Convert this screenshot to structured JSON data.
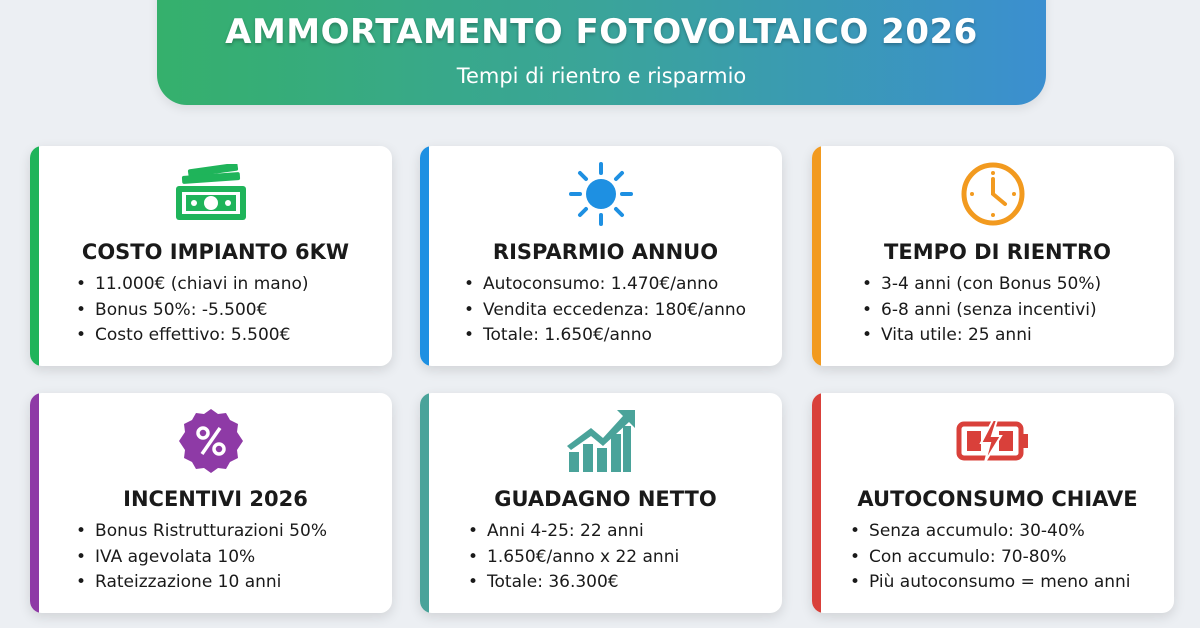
{
  "header": {
    "title": "AMMORTAMENTO FOTOVOLTAICO 2026",
    "subtitle": "Tempi di rientro e risparmio"
  },
  "cards": [
    {
      "icon": "money-icon",
      "color": "#1fb45a",
      "title": "COSTO IMPIANTO 6KW",
      "items": [
        "11.000€ (chiavi in mano)",
        "Bonus 50%: -5.500€",
        "Costo effettivo: 5.500€"
      ]
    },
    {
      "icon": "sun-icon",
      "color": "#1e90e2",
      "title": "RISPARMIO ANNUO",
      "items": [
        "Autoconsumo: 1.470€/anno",
        "Vendita eccedenza: 180€/anno",
        "Totale: 1.650€/anno"
      ]
    },
    {
      "icon": "clock-icon",
      "color": "#f29a1f",
      "title": "TEMPO DI RIENTRO",
      "items": [
        "3-4 anni (con Bonus 50%)",
        "6-8 anni (senza incentivi)",
        "Vita utile: 25 anni"
      ]
    },
    {
      "icon": "percent-badge-icon",
      "color": "#8e3aa6",
      "title": "INCENTIVI 2026",
      "items": [
        "Bonus Ristrutturazioni 50%",
        "IVA agevolata 10%",
        "Rateizzazione 10 anni"
      ]
    },
    {
      "icon": "growth-chart-icon",
      "color": "#4aa39a",
      "title": "GUADAGNO NETTO",
      "items": [
        "Anni 4-25: 22 anni",
        "1.650€/anno x 22 anni",
        "Totale: 36.300€"
      ]
    },
    {
      "icon": "battery-charging-icon",
      "color": "#d9403a",
      "title": "AUTOCONSUMO CHIAVE",
      "items": [
        "Senza accumulo: 30-40%",
        "Con accumulo: 70-80%",
        "Più autoconsumo = meno anni"
      ]
    }
  ]
}
